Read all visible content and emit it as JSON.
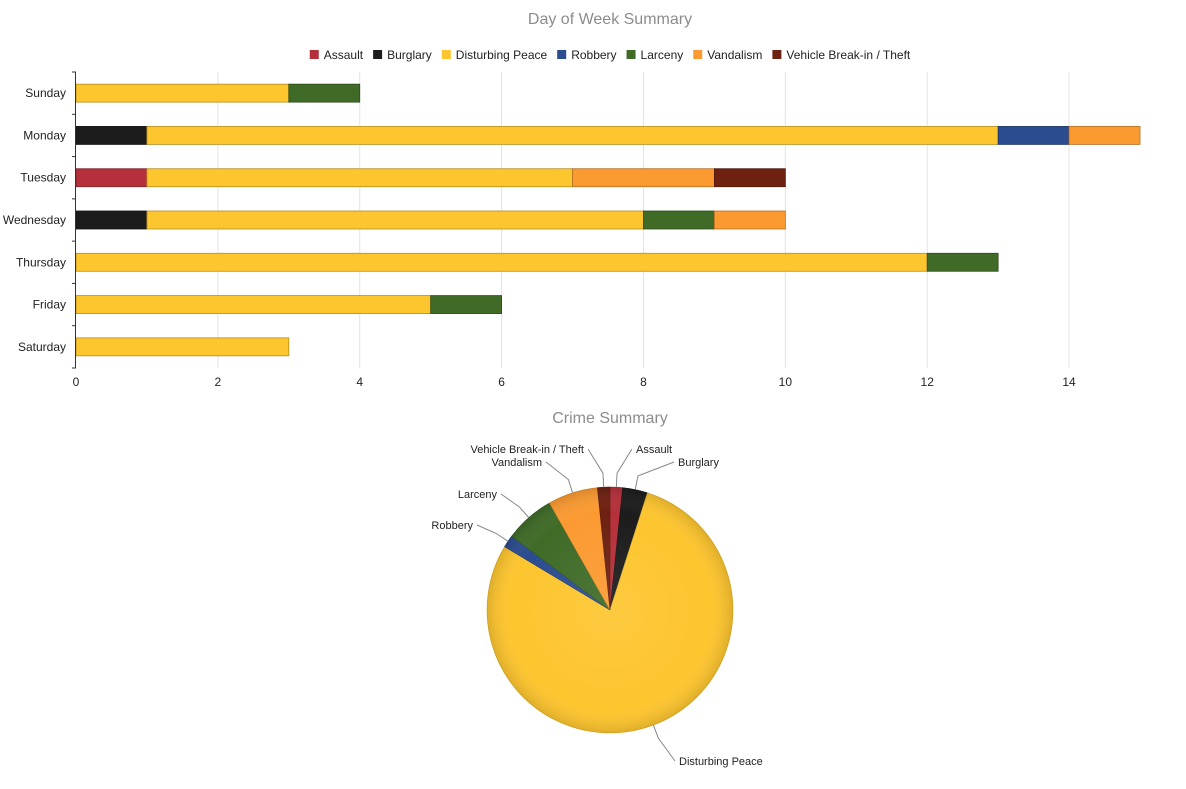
{
  "colors": {
    "Assault": "#b5303a",
    "Burglary": "#1c1c1c",
    "Disturbing Peace": "#fdc52e",
    "Robbery": "#2b4c8f",
    "Larceny": "#3f6b27",
    "Vandalism": "#fb9a31",
    "Vehicle Break-in / Theft": "#6e2111"
  },
  "chart_data": [
    {
      "type": "bar",
      "orientation": "horizontal",
      "stacked": true,
      "title": "Day of Week Summary",
      "categories": [
        "Sunday",
        "Monday",
        "Tuesday",
        "Wednesday",
        "Thursday",
        "Friday",
        "Saturday"
      ],
      "series": [
        {
          "name": "Assault",
          "values": [
            0,
            0,
            1,
            0,
            0,
            0,
            0
          ]
        },
        {
          "name": "Burglary",
          "values": [
            0,
            1,
            0,
            1,
            0,
            0,
            0
          ]
        },
        {
          "name": "Disturbing Peace",
          "values": [
            3,
            12,
            6,
            7,
            12,
            5,
            3
          ]
        },
        {
          "name": "Robbery",
          "values": [
            0,
            1,
            0,
            0,
            0,
            0,
            0
          ]
        },
        {
          "name": "Larceny",
          "values": [
            1,
            0,
            0,
            1,
            1,
            1,
            0
          ]
        },
        {
          "name": "Vandalism",
          "values": [
            0,
            1,
            2,
            1,
            0,
            0,
            0
          ]
        },
        {
          "name": "Vehicle Break-in / Theft",
          "values": [
            0,
            0,
            1,
            0,
            0,
            0,
            0
          ]
        }
      ],
      "xlim": [
        0,
        15
      ],
      "xticks": [
        "0",
        "2",
        "4",
        "6",
        "8",
        "10",
        "12",
        "14"
      ],
      "grid": true,
      "legend": "top-center"
    },
    {
      "type": "pie",
      "title": "Crime Summary",
      "labels": [
        "Assault",
        "Burglary",
        "Disturbing Peace",
        "Robbery",
        "Larceny",
        "Vandalism",
        "Vehicle Break-in / Theft"
      ],
      "values": [
        1,
        2,
        48,
        1,
        4,
        4,
        1
      ]
    }
  ]
}
